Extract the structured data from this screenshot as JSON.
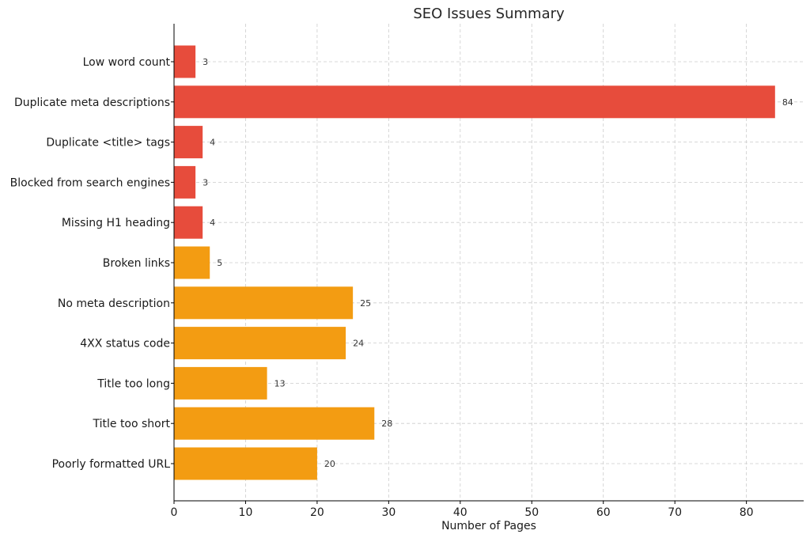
{
  "chart_data": {
    "type": "bar",
    "orientation": "horizontal",
    "title": "SEO Issues Summary",
    "xlabel": "Number of Pages",
    "ylabel": "",
    "xlim": [
      0,
      88
    ],
    "xticks": [
      0,
      10,
      20,
      30,
      40,
      50,
      60,
      70,
      80
    ],
    "grid": true,
    "categories": [
      "Low word count",
      "Duplicate meta descriptions",
      "Duplicate <title> tags",
      "Blocked from search engines",
      "Missing H1 heading",
      "Broken links",
      "No meta description",
      "4XX status code",
      "Title too long",
      "Title too short",
      "Poorly formatted URL"
    ],
    "values": [
      3,
      84,
      4,
      3,
      4,
      5,
      25,
      24,
      13,
      28,
      20
    ],
    "bar_colors": [
      "#e74c3c",
      "#e74c3c",
      "#e74c3c",
      "#e74c3c",
      "#e74c3c",
      "#f39c12",
      "#f39c12",
      "#f39c12",
      "#f39c12",
      "#f39c12",
      "#f39c12"
    ]
  }
}
